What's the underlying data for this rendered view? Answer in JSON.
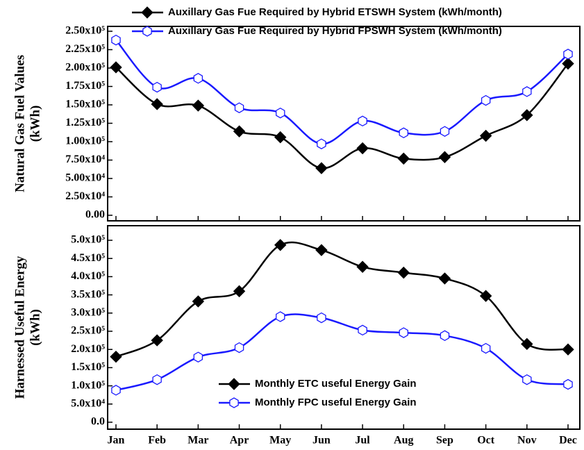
{
  "chart_data": [
    {
      "type": "line",
      "ylabel": [
        "Natural Gas Fuel Values",
        "(kWh)"
      ],
      "legend": "upper center",
      "ylim": [
        0,
        250000
      ],
      "yticks": [
        {
          "value": 0,
          "label": "0.00"
        },
        {
          "value": 25000,
          "label": "2.50x10⁴"
        },
        {
          "value": 50000,
          "label": "5.00x10⁴"
        },
        {
          "value": 75000,
          "label": "7.50x10⁴"
        },
        {
          "value": 100000,
          "label": "1.00x10⁵"
        },
        {
          "value": 125000,
          "label": "1.25x10⁵"
        },
        {
          "value": 150000,
          "label": "1.50x10⁵"
        },
        {
          "value": 175000,
          "label": "1.75x10⁵"
        },
        {
          "value": 200000,
          "label": "2.00x10⁵"
        },
        {
          "value": 225000,
          "label": "2.25x10⁵"
        },
        {
          "value": 250000,
          "label": "2.50x10⁵"
        }
      ],
      "series": [
        {
          "name": "Auxillary Gas Fue Required by Hybrid ETSWH System (kWh/month)",
          "color": "#000000",
          "marker": "diamond",
          "values": [
            201000,
            151000,
            149000,
            114000,
            106000,
            64000,
            91000,
            77000,
            79000,
            108000,
            136000,
            206000
          ]
        },
        {
          "name": "Auxillary Gas Fue Required by Hybrid FPSWH System (kWh/month)",
          "color": "#1a1aff",
          "marker": "hexagon",
          "values": [
            238000,
            174000,
            186000,
            146000,
            139000,
            97000,
            128000,
            112000,
            114000,
            156000,
            168000,
            219000
          ]
        }
      ]
    },
    {
      "type": "line",
      "ylabel": [
        "Harnessed Useful Energy",
        "(kWh)"
      ],
      "legend": "lower center",
      "categories": [
        "Jan",
        "Feb",
        "Mar",
        "Apr",
        "May",
        "Jun",
        "Jul",
        "Aug",
        "Sep",
        "Oct",
        "Nov",
        "Dec"
      ],
      "ylim": [
        0,
        500000
      ],
      "yticks": [
        {
          "value": 0,
          "label": "0.0"
        },
        {
          "value": 50000,
          "label": "5.0x10⁴"
        },
        {
          "value": 100000,
          "label": "1.0x10⁵"
        },
        {
          "value": 150000,
          "label": "1.5x10⁵"
        },
        {
          "value": 200000,
          "label": "2.0x10⁵"
        },
        {
          "value": 250000,
          "label": "2.5x10⁵"
        },
        {
          "value": 300000,
          "label": "3.0x10⁵"
        },
        {
          "value": 350000,
          "label": "3.5x10⁵"
        },
        {
          "value": 400000,
          "label": "4.0x10⁵"
        },
        {
          "value": 450000,
          "label": "4.5x10⁵"
        },
        {
          "value": 500000,
          "label": "5.0x10⁵"
        }
      ],
      "series": [
        {
          "name": "Monthly ETC useful Energy Gain",
          "color": "#000000",
          "marker": "diamond",
          "values": [
            180000,
            225000,
            332000,
            360000,
            487000,
            473000,
            427000,
            411000,
            395000,
            347000,
            215000,
            200000
          ]
        },
        {
          "name": "Monthly FPC useful Energy Gain",
          "color": "#1a1aff",
          "marker": "hexagon",
          "values": [
            88000,
            117000,
            179000,
            205000,
            290000,
            287000,
            253000,
            246000,
            238000,
            203000,
            117000,
            104000
          ]
        }
      ]
    }
  ]
}
